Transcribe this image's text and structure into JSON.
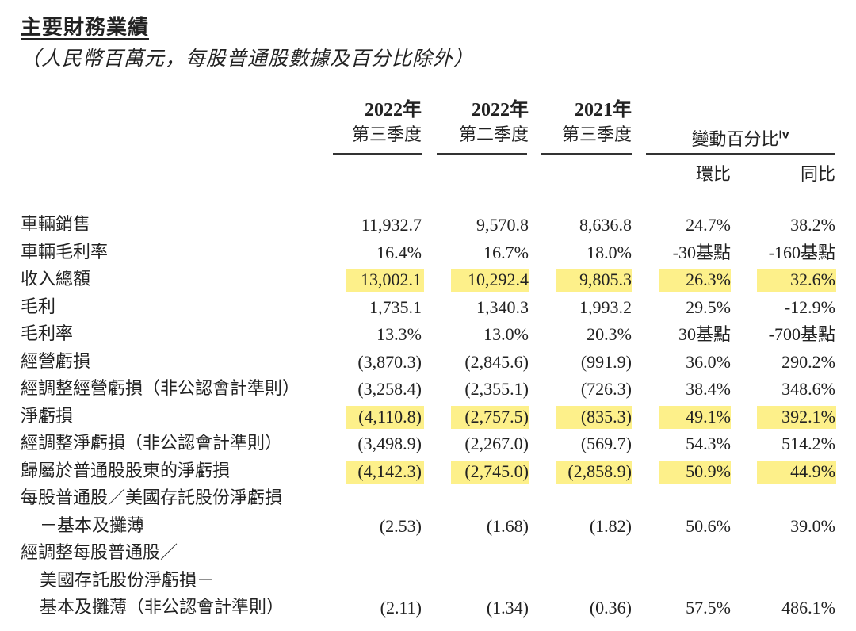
{
  "title": "主要財務業績",
  "subtitle": "（人民幣百萬元，每股普通股數據及百分比除外）",
  "columns": [
    {
      "year": "2022年",
      "quarter": "第三季度"
    },
    {
      "year": "2022年",
      "quarter": "第二季度"
    },
    {
      "year": "2021年",
      "quarter": "第三季度"
    }
  ],
  "change_header": "變動百分比",
  "change_note": "iv",
  "change_sub": [
    "環比",
    "同比"
  ],
  "rows": [
    {
      "label": "車輛銷售",
      "values": [
        "11,932.7",
        "9,570.8",
        "8,636.8",
        "24.7%",
        "38.2%"
      ],
      "highlight": false
    },
    {
      "label": "車輛毛利率",
      "values": [
        "16.4%",
        "16.7%",
        "18.0%",
        "-30基點",
        "-160基點"
      ],
      "highlight": false
    },
    {
      "label": "收入總額",
      "values": [
        "13,002.1",
        "10,292.4",
        "9,805.3",
        "26.3%",
        "32.6%"
      ],
      "highlight": true
    },
    {
      "label": "毛利",
      "values": [
        "1,735.1",
        "1,340.3",
        "1,993.2",
        "29.5%",
        "-12.9%"
      ],
      "highlight": false
    },
    {
      "label": "毛利率",
      "values": [
        "13.3%",
        "13.0%",
        "20.3%",
        "30基點",
        "-700基點"
      ],
      "highlight": false
    },
    {
      "label": "經營虧損",
      "values": [
        "(3,870.3)",
        "(2,845.6)",
        "(991.9)",
        "36.0%",
        "290.2%"
      ],
      "highlight": false
    },
    {
      "label": "經調整經營虧損（非公認會計準則）",
      "values": [
        "(3,258.4)",
        "(2,355.1)",
        "(726.3)",
        "38.4%",
        "348.6%"
      ],
      "highlight": false
    },
    {
      "label": "淨虧損",
      "values": [
        "(4,110.8)",
        "(2,757.5)",
        "(835.3)",
        "49.1%",
        "392.1%"
      ],
      "highlight": true
    },
    {
      "label": "經調整淨虧損（非公認會計準則）",
      "values": [
        "(3,498.9)",
        "(2,267.0)",
        "(569.7)",
        "54.3%",
        "514.2%"
      ],
      "highlight": false
    },
    {
      "label": "歸屬於普通股股東的淨虧損",
      "values": [
        "(4,142.3)",
        "(2,745.0)",
        "(2,858.9)",
        "50.9%",
        "44.9%"
      ],
      "highlight": true
    },
    {
      "label": "每股普通股／美國存託股份淨虧損",
      "values": [
        "",
        "",
        "",
        "",
        ""
      ],
      "highlight": false
    },
    {
      "label": "－基本及攤薄",
      "values": [
        "(2.53)",
        "(1.68)",
        "(1.82)",
        "50.6%",
        "39.0%"
      ],
      "highlight": false,
      "indent": true
    },
    {
      "label": "經調整每股普通股／",
      "values": [
        "",
        "",
        "",
        "",
        ""
      ],
      "highlight": false
    },
    {
      "label": "美國存託股份淨虧損－",
      "values": [
        "",
        "",
        "",
        "",
        ""
      ],
      "highlight": false,
      "indent": true
    },
    {
      "label": "基本及攤薄（非公認會計準則）",
      "values": [
        "(2.11)",
        "(1.34)",
        "(0.36)",
        "57.5%",
        "486.1%"
      ],
      "highlight": false,
      "indent": true
    }
  ]
}
